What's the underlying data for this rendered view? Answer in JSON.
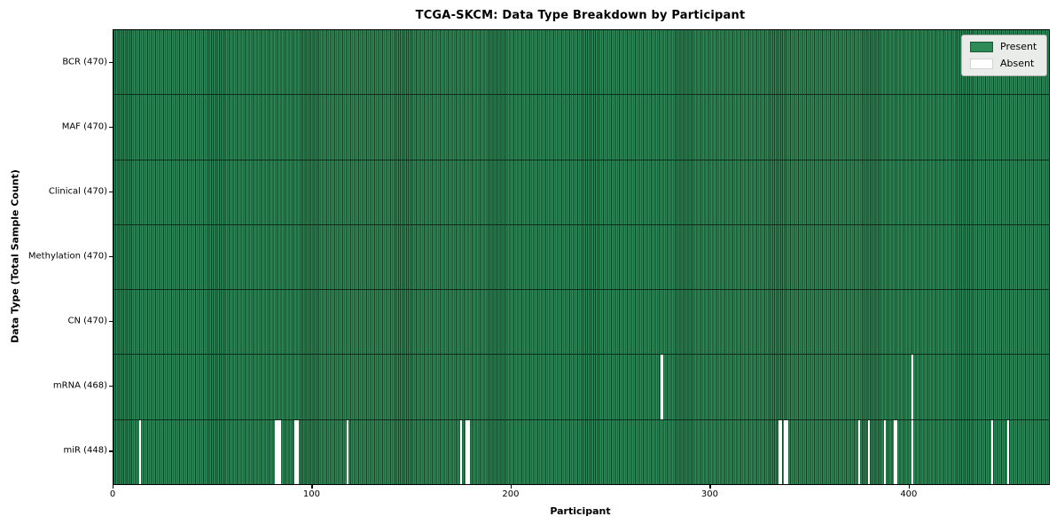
{
  "title": "TCGA-SKCM: Data Type Breakdown by Participant",
  "x_axis": {
    "title": "Participant"
  },
  "y_axis": {
    "title": "Data Type (Total Sample Count)"
  },
  "legend": {
    "present_label": "Present",
    "absent_label": "Absent"
  },
  "colors": {
    "present": "#2e8b57",
    "cell_edge": "#16422a",
    "absent": "#ffffff",
    "row_divider": "#0e2b1c",
    "legend_bg": "#eaece9",
    "legend_border": "#b3b3b3",
    "spine": "#000000"
  },
  "chart_data": {
    "type": "heatmap",
    "title": "TCGA-SKCM: Data Type Breakdown by Participant",
    "xlabel": "Participant",
    "ylabel": "Data Type (Total Sample Count)",
    "legend_position": "upper right",
    "n_participants": 470,
    "x_ticks": [
      0,
      100,
      200,
      300,
      400
    ],
    "x_range": [
      0,
      470
    ],
    "cell_values": "present=1 (green), absent=0 (white)",
    "rows": [
      {
        "label": "BCR",
        "total": 470,
        "absent_participants": []
      },
      {
        "label": "MAF",
        "total": 470,
        "absent_participants": []
      },
      {
        "label": "Clinical",
        "total": 470,
        "absent_participants": []
      },
      {
        "label": "Methylation",
        "total": 470,
        "absent_participants": []
      },
      {
        "label": "CN",
        "total": 470,
        "absent_participants": []
      },
      {
        "label": "mRNA",
        "total": 468,
        "absent_participants": [
          275,
          401
        ]
      },
      {
        "label": "miR",
        "total": 448,
        "absent_participants": [
          13,
          81,
          82,
          83,
          91,
          92,
          117,
          174,
          177,
          178,
          334,
          335,
          337,
          338,
          374,
          379,
          387,
          392,
          393,
          401,
          441,
          449
        ]
      }
    ]
  }
}
